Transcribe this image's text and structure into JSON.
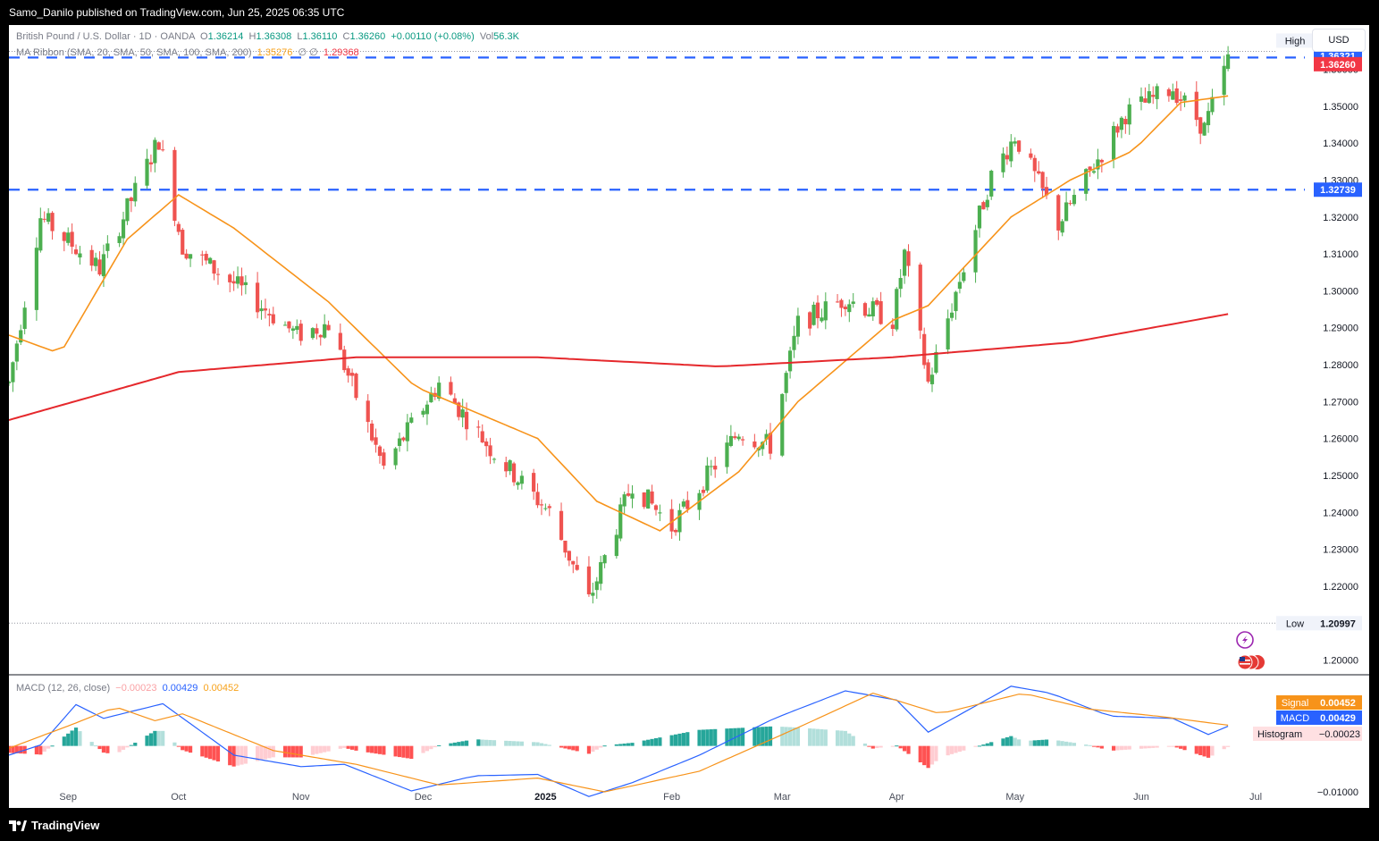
{
  "header": {
    "published": "Samo_Danilo published on TradingView.com, Jun 25, 2025 06:35 UTC"
  },
  "footer": {
    "brand": "TradingView"
  },
  "legend": {
    "symbol": "British Pound / U.S. Dollar · 1D · OANDA",
    "o_label": "O",
    "o": "1.36214",
    "h_label": "H",
    "h": "1.36308",
    "l_label": "L",
    "l": "1.36110",
    "c_label": "C",
    "c": "1.36260",
    "change": "+0.00110 (+0.08%)",
    "vol_label": "Vol",
    "vol": "56.3K",
    "ma_label": "MA Ribbon (SMA, 20, SMA, 50, SMA, 100, SMA, 200)",
    "ma20": "1.35276",
    "ma_empty": "∅ ∅",
    "ma200": "1.29368",
    "macd_label": "MACD (12, 26, close)",
    "macd_hist": "−0.00023",
    "macd_line": "0.00429",
    "macd_signal": "0.00452"
  },
  "currency_button": "USD",
  "colors": {
    "up": "#4caf50",
    "down": "#ef5350",
    "sma20": "#f7931a",
    "sma200": "#e5282c",
    "level": "#2962ff",
    "macd": "#2962ff",
    "signal": "#f7931a",
    "hist_up_strong": "#26a69a",
    "hist_up_weak": "#b2dfdb",
    "hist_down_strong": "#ff5252",
    "hist_down_weak": "#ffcdd2"
  },
  "chart_data": [
    {
      "type": "candlestick",
      "title": "British Pound / U.S. Dollar · 1D · OANDA",
      "x_ticks": [
        "Sep",
        "Oct",
        "Nov",
        "Dec",
        "2025",
        "Feb",
        "Mar",
        "Apr",
        "May",
        "Jun",
        "Jul"
      ],
      "y_ticks": [
        "1.20000",
        "1.21000",
        "1.22000",
        "1.23000",
        "1.24000",
        "1.25000",
        "1.26000",
        "1.27000",
        "1.28000",
        "1.29000",
        "1.30000",
        "1.31000",
        "1.32000",
        "1.33000",
        "1.34000",
        "1.35000",
        "1.36000"
      ],
      "ylim": [
        1.196,
        1.372
      ],
      "high_label": "High",
      "high": "1.36487",
      "low_label": "Low",
      "low": "1.20997",
      "price_label": "1.36260",
      "resistance_label": "1.36321",
      "support_label": "1.32739",
      "levels": [
        1.3632,
        1.3274
      ],
      "anchors": [
        [
          "2024-08-19",
          1.275
        ],
        [
          "2024-08-27",
          1.32
        ],
        [
          "2024-09-11",
          1.306
        ],
        [
          "2024-09-26",
          1.341
        ],
        [
          "2024-10-02",
          1.312
        ],
        [
          "2024-10-15",
          1.302
        ],
        [
          "2024-10-31",
          1.288
        ],
        [
          "2024-11-08",
          1.291
        ],
        [
          "2024-11-22",
          1.252
        ],
        [
          "2024-12-06",
          1.275
        ],
        [
          "2024-12-20",
          1.256
        ],
        [
          "2025-01-03",
          1.24
        ],
        [
          "2025-01-13",
          1.216
        ],
        [
          "2025-01-24",
          1.248
        ],
        [
          "2025-02-03",
          1.236
        ],
        [
          "2025-02-20",
          1.262
        ],
        [
          "2025-02-28",
          1.258
        ],
        [
          "2025-03-07",
          1.291
        ],
        [
          "2025-03-19",
          1.298
        ],
        [
          "2025-03-31",
          1.292
        ],
        [
          "2025-04-03",
          1.31
        ],
        [
          "2025-04-09",
          1.275
        ],
        [
          "2025-04-25",
          1.331
        ],
        [
          "2025-05-01",
          1.342
        ],
        [
          "2025-05-12",
          1.318
        ],
        [
          "2025-05-29",
          1.348
        ],
        [
          "2025-06-10",
          1.355
        ],
        [
          "2025-06-18",
          1.344
        ],
        [
          "2025-06-24",
          1.3626
        ]
      ],
      "series": [
        {
          "name": "SMA 20",
          "points": [
            [
              "2024-08-19",
              1.288
            ],
            [
              "2024-09-01",
              1.283
            ],
            [
              "2024-09-18",
              1.314
            ],
            [
              "2024-10-01",
              1.326
            ],
            [
              "2024-10-15",
              1.317
            ],
            [
              "2024-11-08",
              1.297
            ],
            [
              "2024-11-30",
              1.274
            ],
            [
              "2024-12-31",
              1.26
            ],
            [
              "2025-01-15",
              1.243
            ],
            [
              "2025-01-31",
              1.235
            ],
            [
              "2025-02-20",
              1.251
            ],
            [
              "2025-03-07",
              1.27
            ],
            [
              "2025-03-31",
              1.292
            ],
            [
              "2025-04-09",
              1.296
            ],
            [
              "2025-04-30",
              1.32
            ],
            [
              "2025-05-15",
              1.33
            ],
            [
              "2025-05-31",
              1.338
            ],
            [
              "2025-06-12",
              1.351
            ],
            [
              "2025-06-24",
              1.3528
            ]
          ]
        },
        {
          "name": "SMA 200",
          "points": [
            [
              "2024-08-19",
              1.265
            ],
            [
              "2024-10-01",
              1.278
            ],
            [
              "2024-11-15",
              1.282
            ],
            [
              "2024-12-31",
              1.282
            ],
            [
              "2025-02-15",
              1.2795
            ],
            [
              "2025-03-31",
              1.282
            ],
            [
              "2025-05-15",
              1.286
            ],
            [
              "2025-06-24",
              1.2937
            ]
          ]
        }
      ]
    },
    {
      "type": "line",
      "title": "MACD (12, 26, close)",
      "y_ticks": [
        "−0.01000"
      ],
      "hist_label": "Histogram",
      "hist_value": "−0.00023",
      "macd_label": "MACD",
      "macd_value": "0.00429",
      "signal_label": "Signal",
      "signal_value": "0.00452",
      "ylim": [
        -0.0135,
        0.0155
      ],
      "series": [
        {
          "name": "MACD",
          "points": [
            [
              "2024-08-19",
              -0.002
            ],
            [
              "2024-08-27",
              0.0002
            ],
            [
              "2024-09-05",
              0.009
            ],
            [
              "2024-09-12",
              0.006
            ],
            [
              "2024-09-27",
              0.0092
            ],
            [
              "2024-10-15",
              -0.002
            ],
            [
              "2024-11-01",
              -0.0045
            ],
            [
              "2024-11-12",
              -0.004
            ],
            [
              "2024-11-29",
              -0.0098
            ],
            [
              "2024-12-15",
              -0.0065
            ],
            [
              "2024-12-31",
              -0.0062
            ],
            [
              "2025-01-13",
              -0.011
            ],
            [
              "2025-01-24",
              -0.008
            ],
            [
              "2025-02-10",
              -0.002
            ],
            [
              "2025-03-01",
              0.006
            ],
            [
              "2025-03-19",
              0.012
            ],
            [
              "2025-04-01",
              0.01
            ],
            [
              "2025-04-09",
              0.003
            ],
            [
              "2025-04-30",
              0.013
            ],
            [
              "2025-05-10",
              0.0115
            ],
            [
              "2025-05-25",
              0.0065
            ],
            [
              "2025-06-10",
              0.006
            ],
            [
              "2025-06-19",
              0.0025
            ],
            [
              "2025-06-24",
              0.00429
            ]
          ]
        },
        {
          "name": "Signal",
          "points": [
            [
              "2024-08-19",
              -0.0005
            ],
            [
              "2024-09-05",
              0.005
            ],
            [
              "2024-09-15",
              0.0085
            ],
            [
              "2024-09-25",
              0.0055
            ],
            [
              "2024-10-02",
              0.007
            ],
            [
              "2024-10-25",
              -0.001
            ],
            [
              "2024-11-15",
              -0.004
            ],
            [
              "2024-12-06",
              -0.0085
            ],
            [
              "2024-12-31",
              -0.007
            ],
            [
              "2025-01-17",
              -0.01
            ],
            [
              "2025-02-10",
              -0.0055
            ],
            [
              "2025-03-07",
              0.004
            ],
            [
              "2025-03-26",
              0.0115
            ],
            [
              "2025-04-12",
              0.007
            ],
            [
              "2025-05-03",
              0.0115
            ],
            [
              "2025-05-20",
              0.008
            ],
            [
              "2025-06-06",
              0.0065
            ],
            [
              "2025-06-24",
              0.00452
            ]
          ]
        }
      ]
    }
  ]
}
